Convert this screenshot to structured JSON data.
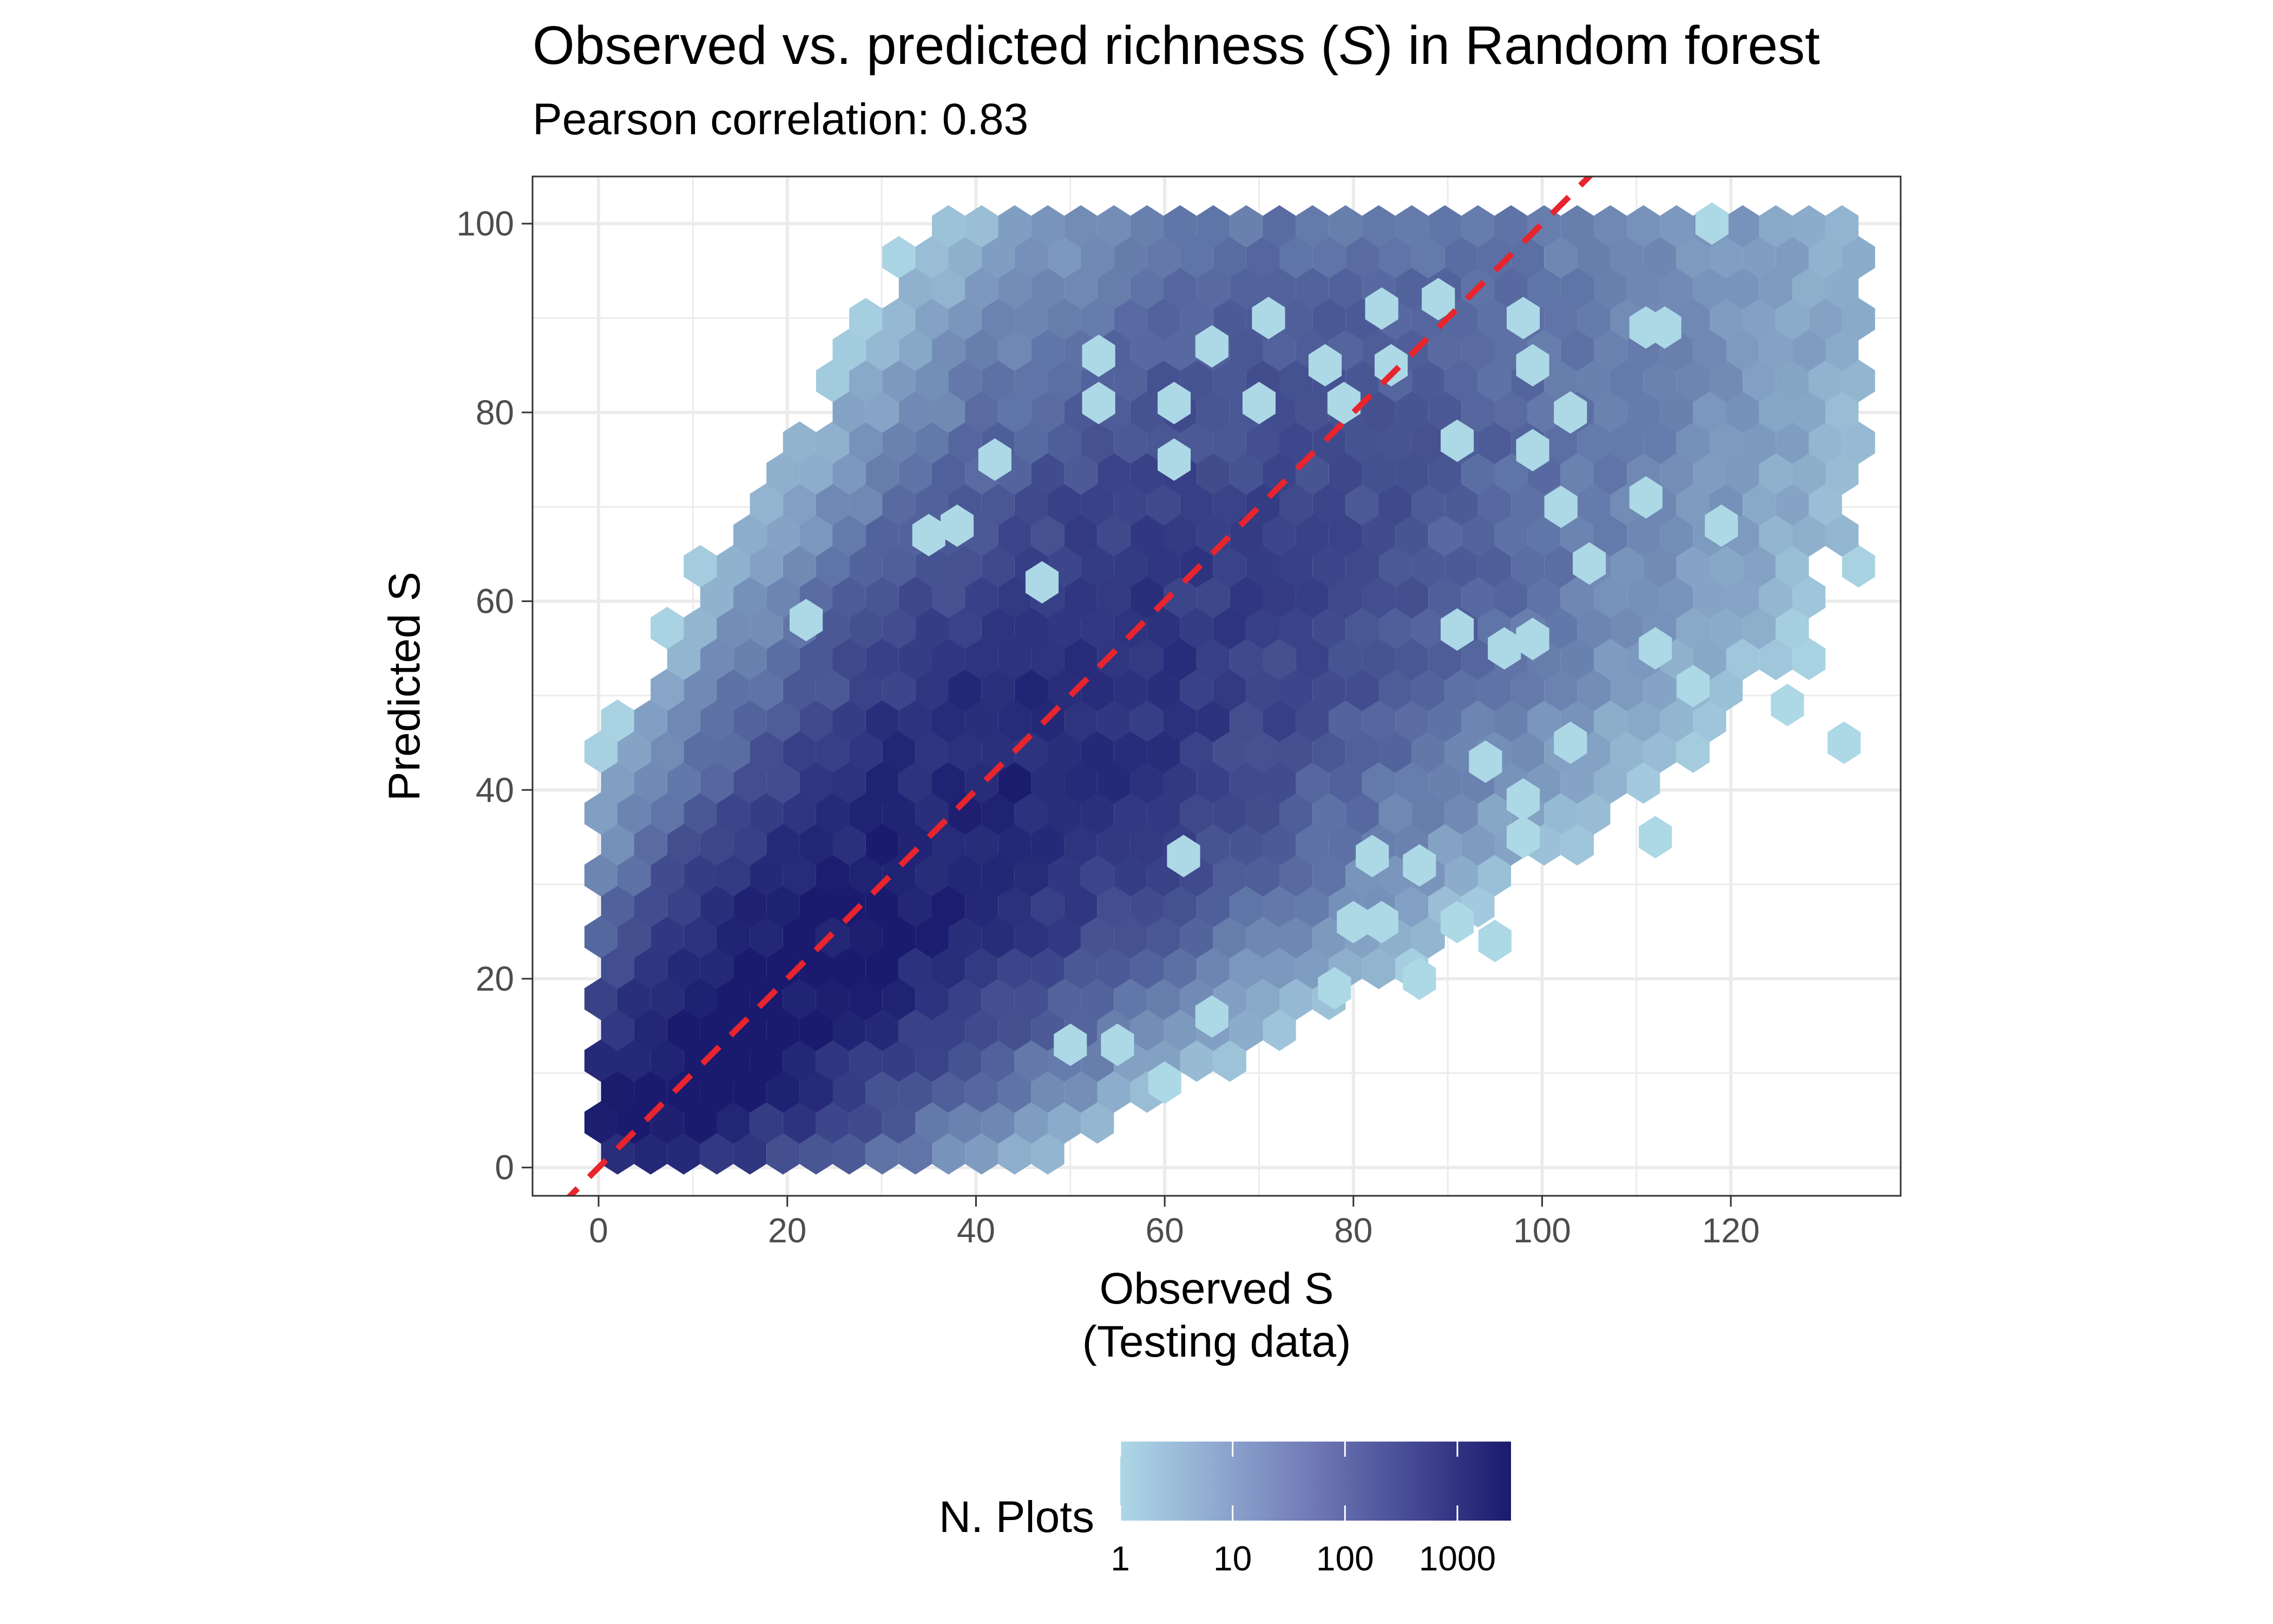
{
  "chart_data": {
    "type": "hexbin",
    "title_parts": [
      "Observed vs. predicted richness (",
      "S",
      ") in Random forest"
    ],
    "subtitle": "Pearson correlation: 0.83",
    "xlabel_lines": [
      "Observed S",
      "(Testing data)"
    ],
    "ylabel": "Predicted S",
    "xlim": [
      -7,
      138
    ],
    "ylim": [
      -3,
      105
    ],
    "x_ticks": [
      0,
      20,
      40,
      60,
      80,
      100,
      120
    ],
    "y_ticks": [
      0,
      20,
      40,
      60,
      80,
      100
    ],
    "x_tick_labels": [
      "0",
      "20",
      "40",
      "60",
      "80",
      "100",
      "120"
    ],
    "y_tick_labels": [
      "0",
      "20",
      "40",
      "60",
      "80",
      "100"
    ],
    "grid": true,
    "reference_line": {
      "slope": 1,
      "intercept": 0,
      "style": "dashed",
      "color": "#e8242c"
    },
    "correlation": 0.83,
    "legend": {
      "title": "N. Plots",
      "placement": "bottom",
      "scale": "log10",
      "labels": [
        "1",
        "10",
        "100",
        "1000"
      ],
      "breaks": [
        1,
        10,
        100,
        1000
      ],
      "range": [
        1,
        3000
      ],
      "colors": [
        "#add8e6",
        "#1a1a6e"
      ]
    },
    "outliers": [
      [
        118,
        100
      ],
      [
        89,
        92
      ],
      [
        83,
        91
      ],
      [
        98,
        90
      ],
      [
        71,
        90
      ],
      [
        113,
        89
      ],
      [
        111,
        89
      ],
      [
        53,
        86
      ],
      [
        65,
        87
      ],
      [
        99,
        85
      ],
      [
        84,
        85
      ],
      [
        77,
        85
      ],
      [
        61,
        81
      ],
      [
        70,
        81
      ],
      [
        53,
        81
      ],
      [
        79,
        81
      ],
      [
        103,
        80
      ],
      [
        91,
        77
      ],
      [
        99,
        76
      ],
      [
        42,
        75
      ],
      [
        61,
        75
      ],
      [
        111,
        71
      ],
      [
        119,
        68
      ],
      [
        102,
        70
      ],
      [
        105,
        64
      ],
      [
        99,
        56
      ],
      [
        96,
        55
      ],
      [
        112,
        55
      ],
      [
        116,
        51
      ],
      [
        91,
        57
      ],
      [
        98,
        39
      ],
      [
        126,
        49
      ],
      [
        132,
        45
      ],
      [
        103,
        45
      ],
      [
        94,
        43
      ],
      [
        112,
        35
      ],
      [
        98,
        35
      ],
      [
        87,
        32
      ],
      [
        91,
        26
      ],
      [
        95,
        24
      ],
      [
        87,
        20
      ],
      [
        78,
        19
      ],
      [
        65,
        16
      ],
      [
        55,
        13
      ],
      [
        60,
        9
      ],
      [
        50,
        13
      ],
      [
        83,
        26
      ],
      [
        80,
        26
      ],
      [
        62,
        33
      ],
      [
        82,
        33
      ],
      [
        22,
        58
      ],
      [
        35,
        67
      ],
      [
        47,
        62
      ],
      [
        38,
        68
      ]
    ]
  }
}
